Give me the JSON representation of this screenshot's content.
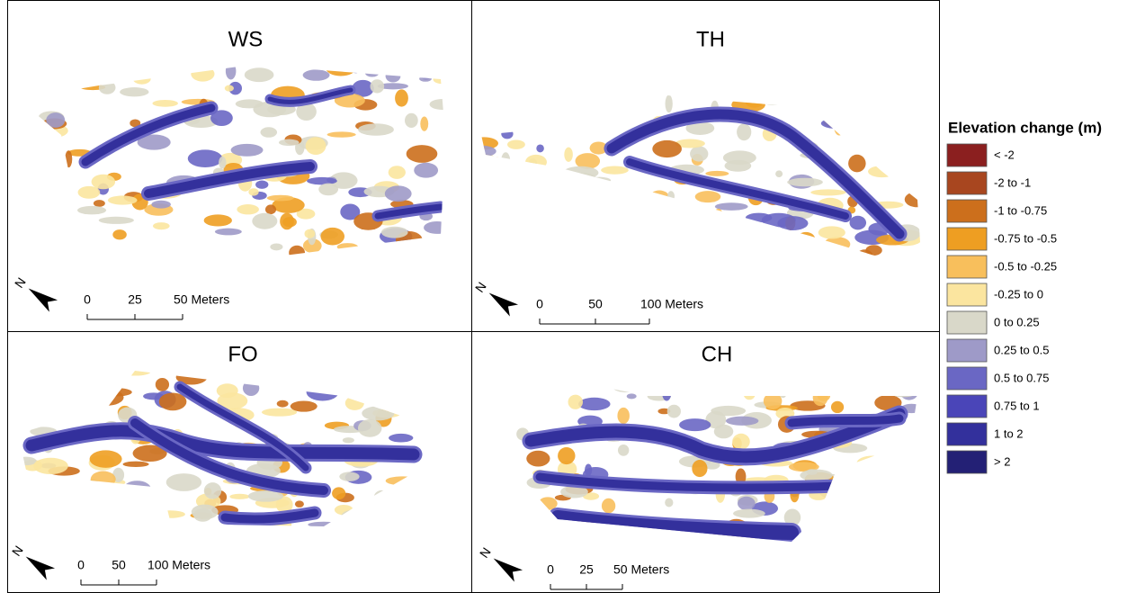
{
  "panels": [
    {
      "title": "WS",
      "north": "N",
      "scale": [
        "0",
        "25",
        "50 Meters"
      ]
    },
    {
      "title": "TH",
      "north": "N",
      "scale": [
        "0",
        "50",
        "100 Meters"
      ]
    },
    {
      "title": "FO",
      "north": "N",
      "scale": [
        "0",
        "50",
        "100 Meters"
      ]
    },
    {
      "title": "CH",
      "north": "N",
      "scale": [
        "0",
        "25",
        "50 Meters"
      ]
    }
  ],
  "legend": {
    "title": "Elevation change (m)",
    "items": [
      {
        "label": "< -2",
        "color": "#8b1f1f"
      },
      {
        "label": "-2 to -1",
        "color": "#a8461f"
      },
      {
        "label": "-1 to -0.75",
        "color": "#cc6f1c"
      },
      {
        "label": "-0.75 to -0.5",
        "color": "#ee9e22"
      },
      {
        "label": "-0.5 to -0.25",
        "color": "#f8bf5c"
      },
      {
        "label": "-0.25 to 0",
        "color": "#fbe59f"
      },
      {
        "label": "0 to 0.25",
        "color": "#d9d8c9"
      },
      {
        "label": "0.25 to 0.5",
        "color": "#9e9ac8"
      },
      {
        "label": "0.5 to 0.75",
        "color": "#6a67c4"
      },
      {
        "label": "0.75 to 1",
        "color": "#4a45b8"
      },
      {
        "label": "1 to 2",
        "color": "#33309c"
      },
      {
        "label": "> 2",
        "color": "#232075"
      }
    ]
  }
}
